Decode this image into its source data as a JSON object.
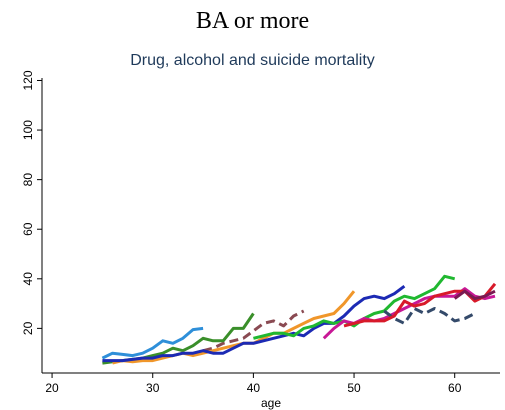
{
  "title": "BA or more",
  "chart_data": {
    "type": "line",
    "title": "BA or more",
    "subtitle": "Drug, alcohol and suicide mortality",
    "xlabel": "age",
    "ylabel": "",
    "xlim": [
      19,
      64.5
    ],
    "ylim": [
      2,
      121
    ],
    "xticks": [
      20,
      30,
      40,
      50,
      60
    ],
    "yticks": [
      20,
      40,
      60,
      80,
      100,
      120
    ],
    "grid": false,
    "legend": "none",
    "series": [
      {
        "color": "#2e8fd9",
        "dash": "solid",
        "x": [
          25,
          26,
          27,
          28,
          29,
          30,
          31,
          32,
          33,
          34,
          35
        ],
        "y": [
          8,
          10,
          9.5,
          9,
          10,
          12,
          15,
          14,
          16,
          19.5,
          20
        ]
      },
      {
        "color": "#8a4a52",
        "dash": "dashed",
        "x": [
          35,
          36,
          37,
          38,
          39,
          40,
          41,
          42,
          43,
          44,
          45
        ],
        "y": [
          11,
          12,
          14,
          15,
          16,
          19,
          22,
          23,
          21,
          25,
          27
        ]
      },
      {
        "color": "#3a8f2a",
        "dash": "solid",
        "x": [
          25,
          26,
          27,
          28,
          29,
          30,
          31,
          32,
          33,
          34,
          35,
          36,
          37,
          38,
          39,
          40
        ],
        "y": [
          6,
          6.5,
          7,
          7.5,
          8,
          9,
          10,
          12,
          11,
          13,
          16,
          15,
          15,
          20,
          20,
          26
        ]
      },
      {
        "color": "#f0962a",
        "dash": "solid",
        "x": [
          26,
          27,
          28,
          29,
          30,
          31,
          32,
          33,
          34,
          35,
          36,
          37,
          38,
          39,
          40,
          41,
          42,
          43,
          44,
          45,
          46,
          47,
          48,
          49,
          50
        ],
        "y": [
          6,
          7,
          6.5,
          7,
          7,
          8,
          9,
          10,
          9,
          10,
          11,
          12,
          13,
          14,
          14,
          16,
          18,
          18,
          20,
          22,
          24,
          25,
          26,
          30,
          35
        ]
      },
      {
        "color": "#1c2ab4",
        "dash": "solid",
        "x": [
          25,
          26,
          27,
          28,
          29,
          30,
          31,
          32,
          33,
          34,
          35,
          36,
          37,
          38,
          39,
          40,
          41,
          42,
          43,
          44,
          45,
          46,
          47,
          48,
          49,
          50,
          51,
          52,
          53,
          54,
          55
        ],
        "y": [
          7,
          7,
          7,
          7.5,
          8,
          8,
          9,
          9,
          10,
          10,
          11,
          10,
          10,
          12,
          14,
          14,
          15,
          16,
          17,
          18,
          17,
          20,
          22,
          22,
          25,
          29,
          32,
          33,
          32,
          34,
          37
        ]
      },
      {
        "color": "#20b830",
        "dash": "solid",
        "x": [
          40,
          41,
          42,
          43,
          44,
          45,
          46,
          47,
          48,
          49,
          50,
          51,
          52,
          53,
          54,
          55,
          56,
          57,
          58,
          59,
          60
        ],
        "y": [
          16,
          17,
          18,
          18,
          17,
          20,
          21,
          23,
          22,
          23,
          21,
          24,
          26,
          27,
          31,
          33,
          32,
          34,
          36,
          41,
          40
        ]
      },
      {
        "color": "#c81896",
        "dash": "solid",
        "x": [
          47,
          48,
          49,
          50,
          51,
          52,
          53,
          54,
          55,
          56,
          57,
          58,
          59,
          60,
          61,
          62,
          63,
          64
        ],
        "y": [
          16,
          20,
          23,
          22,
          24,
          23,
          24,
          26,
          28,
          30,
          32,
          33,
          33,
          33,
          36,
          33,
          32,
          33
        ]
      },
      {
        "color": "#344a6a",
        "dash": "dashed",
        "x": [
          53,
          54,
          55,
          56,
          57,
          58,
          59,
          60,
          61,
          62
        ],
        "y": [
          27,
          24,
          22,
          28,
          26,
          28,
          26,
          23,
          24,
          26
        ]
      },
      {
        "color": "#d81a2a",
        "dash": "solid",
        "x": [
          49,
          50,
          51,
          52,
          53,
          54,
          55,
          56,
          57,
          58,
          59,
          60,
          61,
          62,
          63,
          64
        ],
        "y": [
          21,
          22,
          23,
          23,
          23,
          25,
          31,
          29,
          30,
          33,
          34,
          35,
          35,
          31,
          33,
          38
        ]
      },
      {
        "color": "#7a1a52",
        "dash": "solid",
        "x": [
          60,
          61,
          62,
          63,
          64
        ],
        "y": [
          32,
          35,
          32,
          33,
          35
        ]
      }
    ]
  }
}
